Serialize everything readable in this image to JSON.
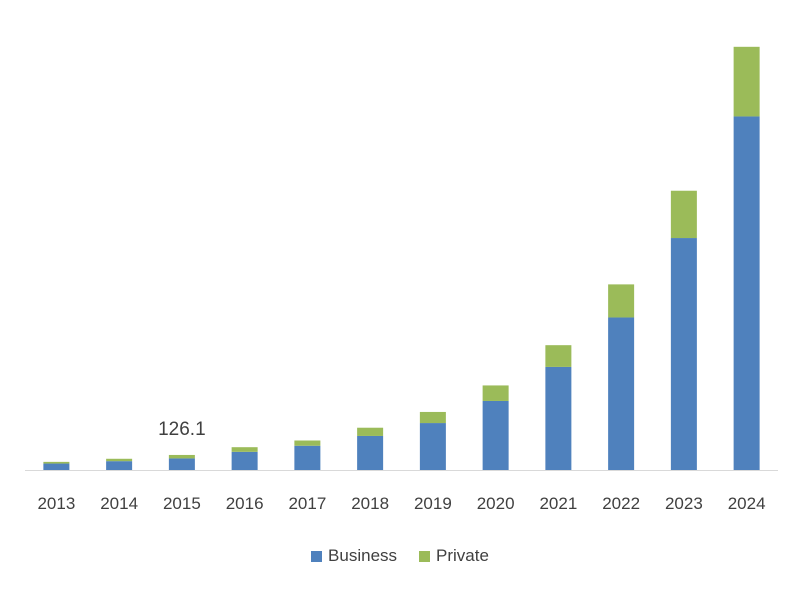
{
  "chart_data": {
    "type": "bar",
    "stacked": true,
    "categories": [
      "2013",
      "2014",
      "2015",
      "2016",
      "2017",
      "2018",
      "2019",
      "2020",
      "2021",
      "2022",
      "2023",
      "2024"
    ],
    "series": [
      {
        "name": "Business",
        "color": "#4f81bd",
        "values": [
          54,
          74,
          97,
          152,
          203,
          285,
          393,
          578,
          863,
          1277,
          1942,
          2960
        ]
      },
      {
        "name": "Private",
        "color": "#9bbb59",
        "values": [
          14,
          20,
          29,
          39,
          44,
          69,
          93,
          130,
          182,
          277,
          396,
          583
        ]
      }
    ],
    "annotations": [
      {
        "category": "2015",
        "text": "126.1"
      }
    ],
    "legend_position": "bottom",
    "grid": false,
    "ylim": [
      0,
      3600
    ]
  }
}
